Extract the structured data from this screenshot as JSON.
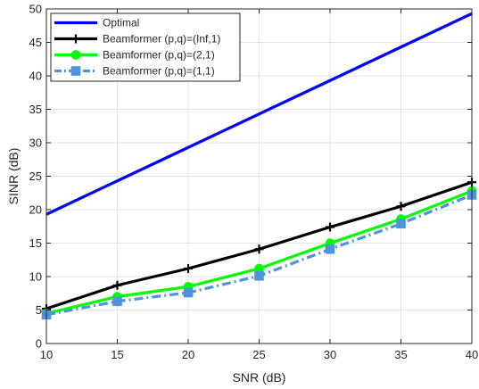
{
  "chart_data": {
    "type": "line",
    "title": "",
    "xlabel": "SNR (dB)",
    "ylabel": "SINR (dB)",
    "xlim": [
      10,
      40
    ],
    "ylim": [
      0,
      50
    ],
    "xticks": [
      10,
      15,
      20,
      25,
      30,
      35,
      40
    ],
    "yticks": [
      0,
      5,
      10,
      15,
      20,
      25,
      30,
      35,
      40,
      45,
      50
    ],
    "grid": true,
    "legend_position": "top-left",
    "x": [
      10,
      15,
      20,
      25,
      30,
      35,
      40
    ],
    "series": [
      {
        "name": "Optimal",
        "values": [
          19.3,
          24.3,
          29.3,
          34.3,
          39.3,
          44.3,
          49.3
        ],
        "color": "#0000ff",
        "line_style": "solid",
        "marker": "none"
      },
      {
        "name": "Beamformer (p,q)=(Inf,1)",
        "values": [
          5.2,
          8.7,
          11.2,
          14.1,
          17.4,
          20.5,
          24.1
        ],
        "color": "#000000",
        "line_style": "solid",
        "marker": "plus"
      },
      {
        "name": "Beamformer (p,q)=(2,1)",
        "values": [
          4.5,
          7.0,
          8.5,
          11.2,
          15.0,
          18.6,
          22.8
        ],
        "color": "#00ff00",
        "line_style": "solid",
        "marker": "circle"
      },
      {
        "name": "Beamformer (p,q)=(1,1)",
        "values": [
          4.3,
          6.3,
          7.6,
          10.1,
          14.1,
          17.9,
          22.2
        ],
        "color": "#4d94db",
        "line_style": "dash-dot",
        "marker": "square"
      }
    ]
  }
}
